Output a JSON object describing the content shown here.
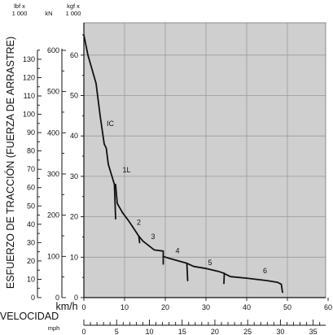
{
  "chart_data": {
    "type": "line",
    "ylabel": "ESFUERZO DE TRACCIÓN (FUERZA DE ARRASTRE)",
    "xlabel": "VELOCIDAD",
    "x_units": {
      "kmh": "km/h",
      "mph": "mph"
    },
    "y_units": {
      "lbf": "lbf x\n1 000",
      "kn": "kN",
      "kgf": "kgf x\n1 000"
    },
    "x_kmh": {
      "range": [
        0,
        60
      ],
      "ticks": [
        "0",
        "10",
        "20",
        "30",
        "40",
        "50",
        "60"
      ]
    },
    "x_mph": {
      "range": [
        0,
        37.3
      ],
      "ticks": [
        "0",
        "5",
        "10",
        "15",
        "20",
        "25",
        "30",
        "35"
      ]
    },
    "y_kgf": {
      "range": [
        0,
        70
      ],
      "ticks": [
        "0",
        "10",
        "20",
        "30",
        "40",
        "50",
        "60"
      ],
      "grid": true
    },
    "y_kn": {
      "ticks": [
        "0",
        "100",
        "200",
        "300",
        "400",
        "500",
        "600"
      ]
    },
    "y_lbf": {
      "ticks": [
        "0",
        "10",
        "20",
        "30",
        "40",
        "50",
        "60",
        "70",
        "80",
        "90",
        "100",
        "110",
        "120",
        "130"
      ]
    },
    "series": [
      {
        "name": "IC",
        "points": [
          [
            0,
            65
          ],
          [
            1,
            60
          ],
          [
            3,
            53
          ],
          [
            4,
            45
          ],
          [
            5,
            38
          ],
          [
            5.5,
            37
          ],
          [
            6,
            33
          ],
          [
            7.5,
            28
          ],
          [
            7.8,
            19.5
          ]
        ]
      },
      {
        "name": "1L",
        "points": [
          [
            7.8,
            28
          ],
          [
            8.2,
            23.3
          ],
          [
            9.5,
            21
          ]
        ]
      },
      {
        "name": "2",
        "points": [
          [
            9.5,
            21
          ],
          [
            11,
            19
          ],
          [
            12,
            17.5
          ],
          [
            13.5,
            15.2
          ],
          [
            13.7,
            13.6
          ]
        ]
      },
      {
        "name": "3",
        "points": [
          [
            13.5,
            15.2
          ],
          [
            14.5,
            14
          ],
          [
            17.3,
            11.8
          ],
          [
            19.5,
            11.5
          ],
          [
            19.5,
            8.3
          ]
        ]
      },
      {
        "name": "4",
        "points": [
          [
            19.5,
            10.2
          ],
          [
            21,
            9.7
          ],
          [
            23.5,
            9
          ],
          [
            25.3,
            8.5
          ],
          [
            25.5,
            4.2
          ]
        ]
      },
      {
        "name": "5",
        "points": [
          [
            25.3,
            8.5
          ],
          [
            27,
            7.7
          ],
          [
            30,
            7.2
          ],
          [
            33,
            6.5
          ],
          [
            34.5,
            6
          ],
          [
            34.4,
            3.5
          ]
        ]
      },
      {
        "name": "6",
        "points": [
          [
            34.4,
            6
          ],
          [
            36,
            5.2
          ],
          [
            40,
            4.8
          ],
          [
            45,
            4.2
          ],
          [
            47.5,
            3.8
          ],
          [
            48.5,
            3.3
          ],
          [
            48.8,
            1.3
          ]
        ]
      }
    ],
    "curve_labels": [
      {
        "text": "IC",
        "x": 6.5,
        "y": 42.5
      },
      {
        "text": "1L",
        "x": 10.5,
        "y": 31
      },
      {
        "text": "2",
        "x": 13.5,
        "y": 18
      },
      {
        "text": "3",
        "x": 17,
        "y": 14.5
      },
      {
        "text": "4",
        "x": 23,
        "y": 11
      },
      {
        "text": "5",
        "x": 31,
        "y": 8
      },
      {
        "text": "6",
        "x": 44.5,
        "y": 6
      }
    ],
    "grid": true,
    "plot_background": "#cfcfcf",
    "line_color": "#111111"
  }
}
